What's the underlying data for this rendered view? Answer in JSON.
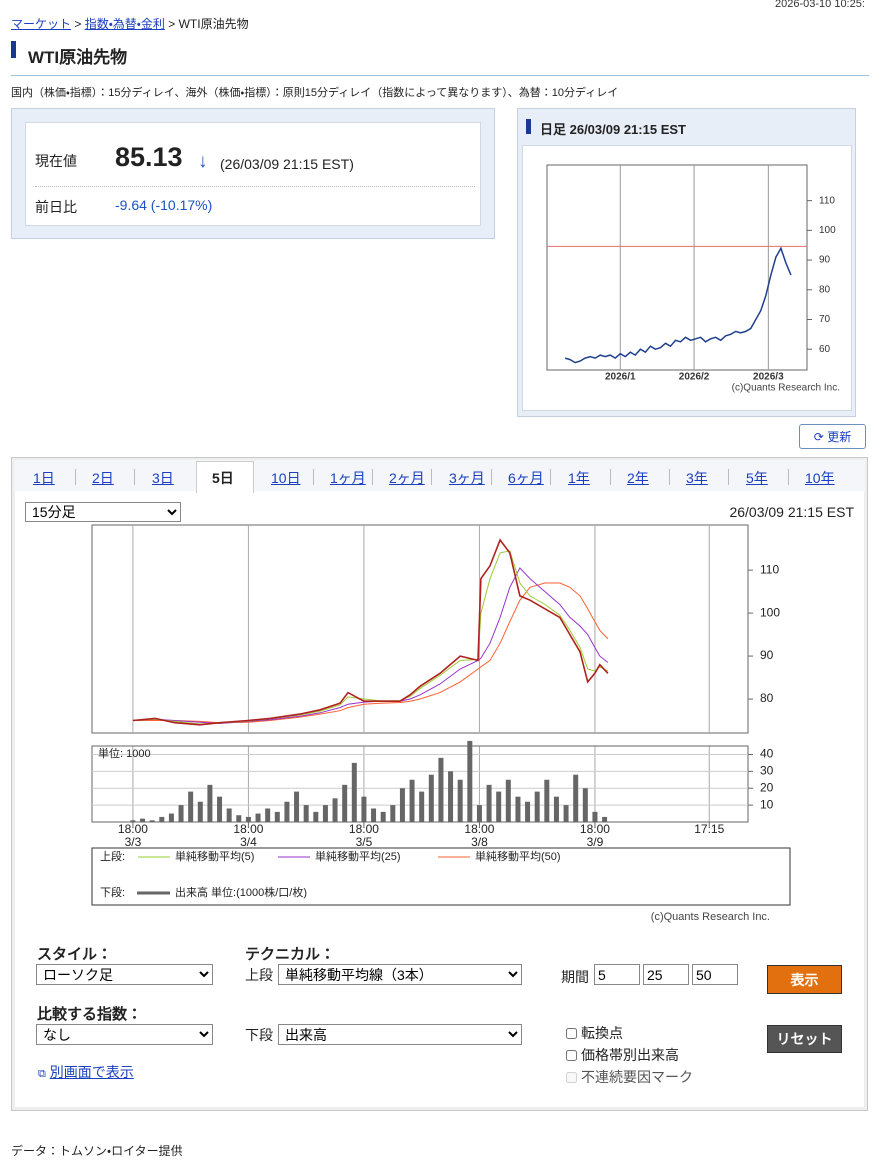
{
  "header": {
    "timestamp": "2026-03-10 10:25:",
    "breadcrumb": [
      "マーケット",
      "指数・為替・金利",
      "WTI原油先物"
    ],
    "separator": ">",
    "title": "WTI原油先物",
    "notice": "国内（株価・指標）：15分ディレイ、海外（株価・指標）：原則15分ディレイ（指数によって異なります）、為替：10分ディレイ"
  },
  "quote": {
    "price_label": "現在値",
    "price": "85.13",
    "arrow": "↓",
    "time": "(26/03/09 21:15 EST)",
    "change_label": "前日比",
    "change": "-9.64 (-10.17%)"
  },
  "daily_chart": {
    "type": "line",
    "title": "日足 26/03/09 21:15 EST",
    "xlim": [
      -3.6,
      48.2
    ],
    "xticks": [
      {
        "value": 11,
        "label": "2026/1"
      },
      {
        "value": 25.7,
        "label": "2026/2"
      },
      {
        "value": 40.5,
        "label": "2026/3"
      }
    ],
    "ylim": [
      53,
      122
    ],
    "yticks": [
      60,
      70,
      80,
      90,
      100,
      110
    ],
    "grid": true,
    "reference_line": {
      "value": 94.6,
      "color": "#e07070"
    },
    "series": [
      {
        "color": "#1f3f8f",
        "values": [
          57,
          56.5,
          55.5,
          56,
          57,
          57.5,
          57,
          58,
          57.5,
          58,
          57,
          58.5,
          57.5,
          59,
          58,
          60,
          59,
          61,
          60,
          60.5,
          62,
          61,
          63,
          62.5,
          64,
          63,
          63.5,
          64,
          62.5,
          63.5,
          64,
          63,
          64.5,
          65,
          66,
          65.5,
          66,
          67,
          70,
          73,
          78,
          85,
          91,
          94,
          89,
          85
        ]
      }
    ],
    "credit": "(c)Quants Research Inc."
  },
  "refresh_button": "更新",
  "tabs": {
    "items": [
      "1日",
      "2日",
      "3日",
      "5日",
      "10日",
      "1ヶ月",
      "2ヶ月",
      "3ヶ月",
      "6ヶ月",
      "1年",
      "2年",
      "3年",
      "5年",
      "10年"
    ],
    "selected": 3
  },
  "interval_select": "15分足",
  "chart_time": "26/03/09 21:15 EST",
  "intraday_chart": {
    "type": "line",
    "x": [
      0,
      4.6,
      8.7,
      13.9,
      18.1,
      23.9,
      28.5,
      34.7,
      38.9,
      43.0,
      44.7,
      48.0,
      51.3,
      55.5,
      57.6,
      59.7,
      63.8,
      68.0,
      71.7,
      72.3,
      74.2,
      76.3,
      78.3,
      80.4,
      82.5,
      85.6,
      88.7,
      90.8,
      92.9,
      94.5,
      96.0,
      97.0,
      98.7
    ],
    "xlim": [
      -8.5,
      127.8
    ],
    "xticks": [
      {
        "value": 0,
        "label": "18:00"
      },
      {
        "value": 24,
        "label": "18:00"
      },
      {
        "value": 48,
        "label": "18:00"
      },
      {
        "value": 72,
        "label": "18:00"
      },
      {
        "value": 96,
        "label": "18:00"
      },
      {
        "value": 119.75,
        "label": "17:15"
      }
    ],
    "xtick_dates": [
      "3/3",
      "3/4",
      "3/5",
      "3/8",
      "3/9",
      null
    ],
    "ylim": [
      72.1,
      120.5
    ],
    "yticks": [
      80,
      90,
      100,
      110
    ],
    "grid": true,
    "series": [
      {
        "color": "#b02020",
        "values": [
          75,
          75.5,
          74.5,
          74,
          74.5,
          75,
          75.5,
          76.5,
          77.5,
          79,
          81.5,
          79.5,
          79.5,
          79.5,
          81,
          83,
          86,
          90,
          89,
          108,
          111,
          117,
          114,
          104,
          103,
          101,
          99,
          95,
          91,
          84,
          86,
          88,
          86
        ]
      },
      {
        "name": "単純移動平均(5)",
        "color": "#9acd32",
        "values": [
          75,
          75.3,
          74.8,
          74.2,
          74.4,
          74.9,
          75.4,
          76.3,
          77.2,
          78.6,
          80.5,
          80,
          79.6,
          79.6,
          80.6,
          82.5,
          85.5,
          89,
          89.2,
          100,
          108,
          114,
          114.5,
          107,
          104,
          102,
          99.5,
          96,
          92,
          87,
          86.5,
          87.5,
          86.5
        ]
      },
      {
        "name": "単純移動平均(25)",
        "color": "#9932cc",
        "values": [
          75,
          75.3,
          75,
          74.6,
          74.3,
          74.8,
          75.2,
          76,
          76.8,
          78,
          78.8,
          79.3,
          79.5,
          79.5,
          80,
          81,
          83.5,
          87,
          89,
          89.5,
          93,
          99,
          106,
          110.5,
          108,
          105,
          102,
          99,
          97,
          95,
          92,
          90,
          88.5
        ]
      },
      {
        "name": "単純移動平均(50)",
        "color": "#ff6030",
        "values": [
          75,
          75,
          75,
          74.8,
          74.5,
          74.6,
          75,
          75.8,
          76.5,
          77.3,
          78,
          78.8,
          79,
          79.2,
          79.5,
          80,
          81.5,
          84,
          87,
          87.5,
          89,
          93,
          98,
          103,
          106,
          107,
          107,
          106,
          104,
          101,
          98,
          96,
          94
        ]
      }
    ]
  },
  "volume": {
    "type": "bar",
    "unit_label": "単位: 1000",
    "color": "#666666",
    "x": [
      0,
      2,
      4,
      6,
      8,
      10,
      12,
      14,
      16,
      18,
      20,
      22,
      24,
      26,
      28,
      30,
      32,
      34,
      36,
      38,
      40,
      42,
      44,
      46,
      48,
      50,
      52,
      54,
      56,
      58,
      60,
      62,
      64,
      66,
      68,
      70,
      72,
      74,
      76,
      78,
      80,
      82,
      84,
      86,
      88,
      90,
      92,
      94,
      96,
      98
    ],
    "values": [
      1,
      2,
      1,
      3,
      5,
      10,
      18,
      12,
      22,
      15,
      8,
      4,
      3,
      5,
      8,
      6,
      12,
      18,
      10,
      6,
      10,
      14,
      22,
      35,
      15,
      8,
      6,
      10,
      20,
      25,
      18,
      28,
      38,
      30,
      25,
      48,
      10,
      22,
      18,
      25,
      15,
      12,
      18,
      25,
      15,
      10,
      28,
      20,
      6,
      3
    ],
    "ylim": [
      0,
      45
    ],
    "yticks": [
      10,
      20,
      30,
      40
    ],
    "grid": true
  },
  "legend": {
    "upper_label": "上段:",
    "lower_label": "下段:",
    "lower_item": "出来高 単位:(1000株/口/枚)"
  },
  "credit": "(c)Quants Research Inc.",
  "controls": {
    "style_label": "スタイル：",
    "style_value": "ローソク足",
    "technical_label": "テクニカル：",
    "upper_label": "上段",
    "upper_value": "単純移動平均線（3本）",
    "period_label": "期間",
    "periods": [
      5,
      25,
      50
    ],
    "show_button": "表示",
    "compare_label": "比較する指数：",
    "compare_value": "なし",
    "lower_label": "下段",
    "lower_value": "出来高",
    "checkboxes": [
      "転換点",
      "価格帯別出来高",
      "不連続要因マーク"
    ],
    "reset_button": "リセット",
    "popup_link": "別画面で表示"
  },
  "footer": "データ：トムソン・ロイター提供"
}
